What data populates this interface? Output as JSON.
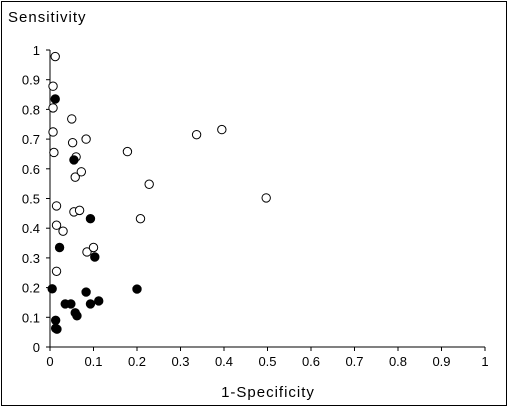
{
  "chart_data": {
    "type": "scatter",
    "ylabel": "Sensitivity",
    "xlabel": "1-Specificity",
    "xlim": [
      0,
      1
    ],
    "ylim": [
      0,
      1
    ],
    "x_ticks": [
      "0",
      "0.1",
      "0.2",
      "0.3",
      "0.4",
      "0.5",
      "0.6",
      "0.7",
      "0.8",
      "0.9",
      "1"
    ],
    "y_ticks": [
      "0",
      "0.1",
      "0.2",
      "0.3",
      "0.4",
      "0.5",
      "0.6",
      "0.7",
      "0.8",
      "0.9",
      "1"
    ],
    "grid": false,
    "series": [
      {
        "marker": "open-circle",
        "color": "#000000",
        "points": [
          [
            0.012,
            0.978
          ],
          [
            0.007,
            0.878
          ],
          [
            0.007,
            0.805
          ],
          [
            0.007,
            0.724
          ],
          [
            0.009,
            0.655
          ],
          [
            0.05,
            0.768
          ],
          [
            0.052,
            0.688
          ],
          [
            0.06,
            0.64
          ],
          [
            0.058,
            0.572
          ],
          [
            0.072,
            0.59
          ],
          [
            0.083,
            0.7
          ],
          [
            0.015,
            0.475
          ],
          [
            0.015,
            0.41
          ],
          [
            0.03,
            0.39
          ],
          [
            0.055,
            0.455
          ],
          [
            0.068,
            0.46
          ],
          [
            0.015,
            0.255
          ],
          [
            0.085,
            0.32
          ],
          [
            0.1,
            0.335
          ],
          [
            0.178,
            0.658
          ],
          [
            0.208,
            0.432
          ],
          [
            0.228,
            0.548
          ],
          [
            0.337,
            0.715
          ],
          [
            0.395,
            0.732
          ],
          [
            0.497,
            0.502
          ]
        ]
      },
      {
        "marker": "filled-circle",
        "color": "#000000",
        "points": [
          [
            0.012,
            0.835
          ],
          [
            0.055,
            0.63
          ],
          [
            0.093,
            0.432
          ],
          [
            0.022,
            0.335
          ],
          [
            0.103,
            0.303
          ],
          [
            0.005,
            0.196
          ],
          [
            0.035,
            0.145
          ],
          [
            0.048,
            0.145
          ],
          [
            0.058,
            0.115
          ],
          [
            0.062,
            0.105
          ],
          [
            0.083,
            0.185
          ],
          [
            0.093,
            0.145
          ],
          [
            0.112,
            0.155
          ],
          [
            0.2,
            0.195
          ],
          [
            0.013,
            0.09
          ],
          [
            0.013,
            0.063
          ],
          [
            0.016,
            0.06
          ]
        ]
      }
    ]
  }
}
